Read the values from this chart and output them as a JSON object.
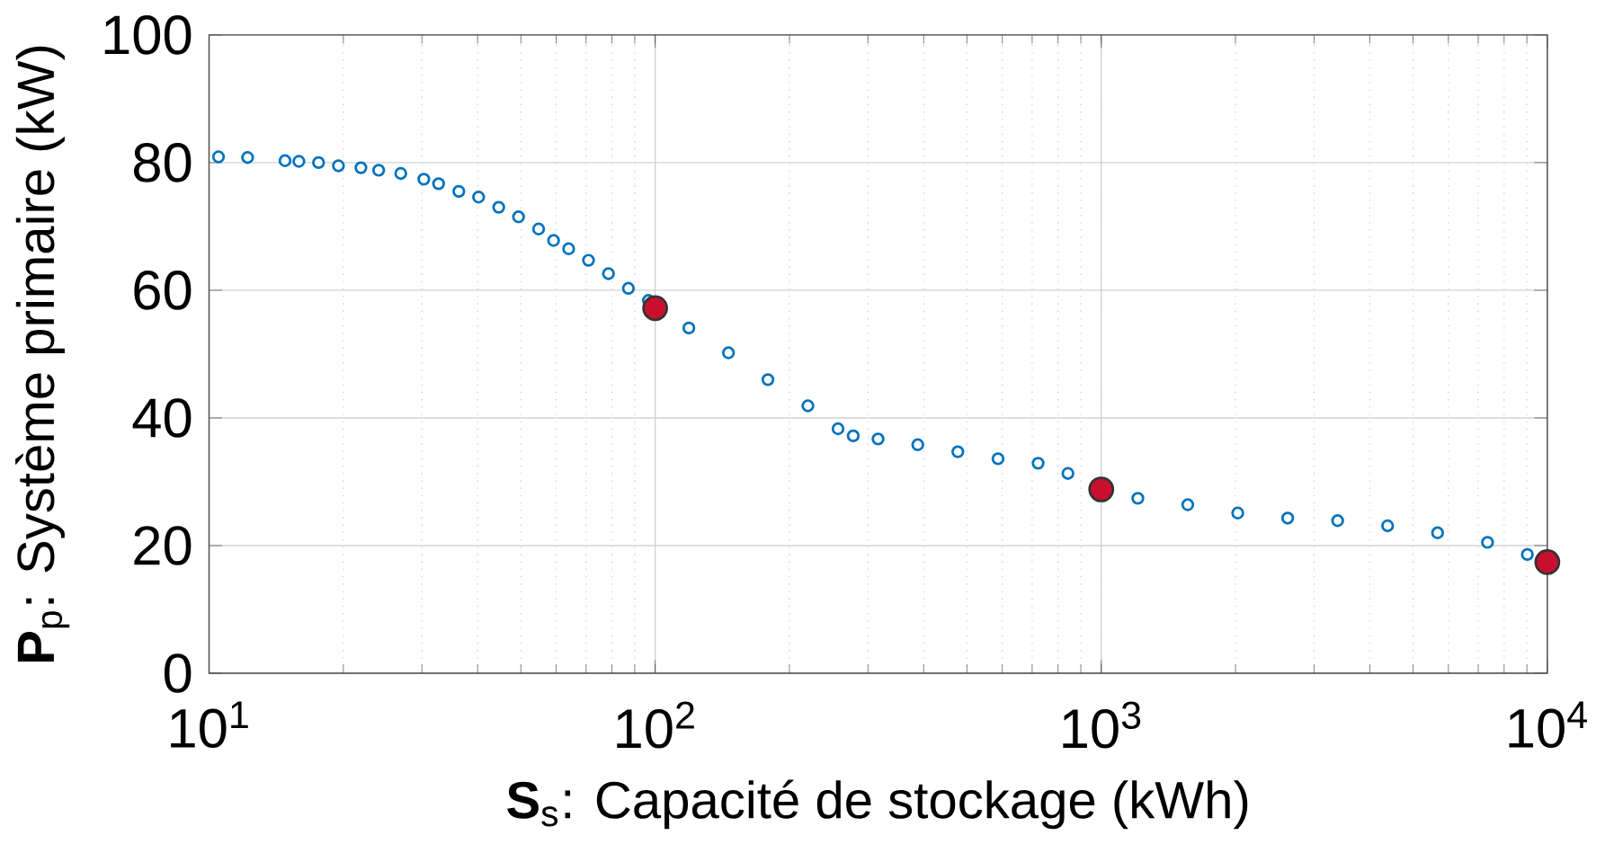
{
  "chart_data": {
    "type": "scatter",
    "xlabel": "**S**$_{s}$: Capacité de stockage (kWh)",
    "ylabel": "**P**$_{p}$: Système primaire (kW)",
    "log": "x",
    "grid": true,
    "xlim": [
      10,
      10000
    ],
    "ylim": [
      0,
      100
    ],
    "xticks": [
      {
        "value": 10,
        "label": "10$^{1}$"
      },
      {
        "value": 100,
        "label": "10$^{2}$"
      },
      {
        "value": 1000,
        "label": "10$^{3}$"
      },
      {
        "value": 10000,
        "label": "10$^{4}$"
      }
    ],
    "yticks": [
      0,
      20,
      40,
      60,
      80,
      100
    ],
    "series": [
      {
        "color": "#0072bd",
        "x": [
          10.5,
          12.2,
          14.8,
          15.9,
          17.6,
          19.5,
          21.9,
          24.0,
          26.9,
          30.3,
          32.7,
          36.3,
          40.2,
          44.6,
          49.4,
          54.8,
          59.2,
          64.0,
          70.9,
          78.6,
          87.1,
          96.6,
          119,
          146,
          179,
          220,
          257,
          278,
          316,
          388,
          477,
          587,
          722,
          842,
          1208,
          1563,
          2023,
          2618,
          3388,
          4385,
          5675,
          7345,
          9020
        ],
        "values": [
          80.9,
          80.8,
          80.3,
          80.2,
          80.0,
          79.5,
          79.2,
          78.8,
          78.3,
          77.4,
          76.7,
          75.5,
          74.6,
          73.0,
          71.5,
          69.6,
          67.8,
          66.5,
          64.7,
          62.6,
          60.3,
          58.4,
          54.1,
          50.2,
          46.0,
          41.9,
          38.3,
          37.2,
          36.7,
          35.8,
          34.7,
          33.6,
          32.9,
          31.3,
          27.4,
          26.4,
          25.1,
          24.3,
          23.9,
          23.1,
          22.0,
          20.5,
          18.6
        ]
      },
      {
        "color": "#c8102e",
        "x": [
          100,
          1000,
          10000
        ],
        "values": [
          57.2,
          28.8,
          17.4
        ]
      }
    ]
  }
}
